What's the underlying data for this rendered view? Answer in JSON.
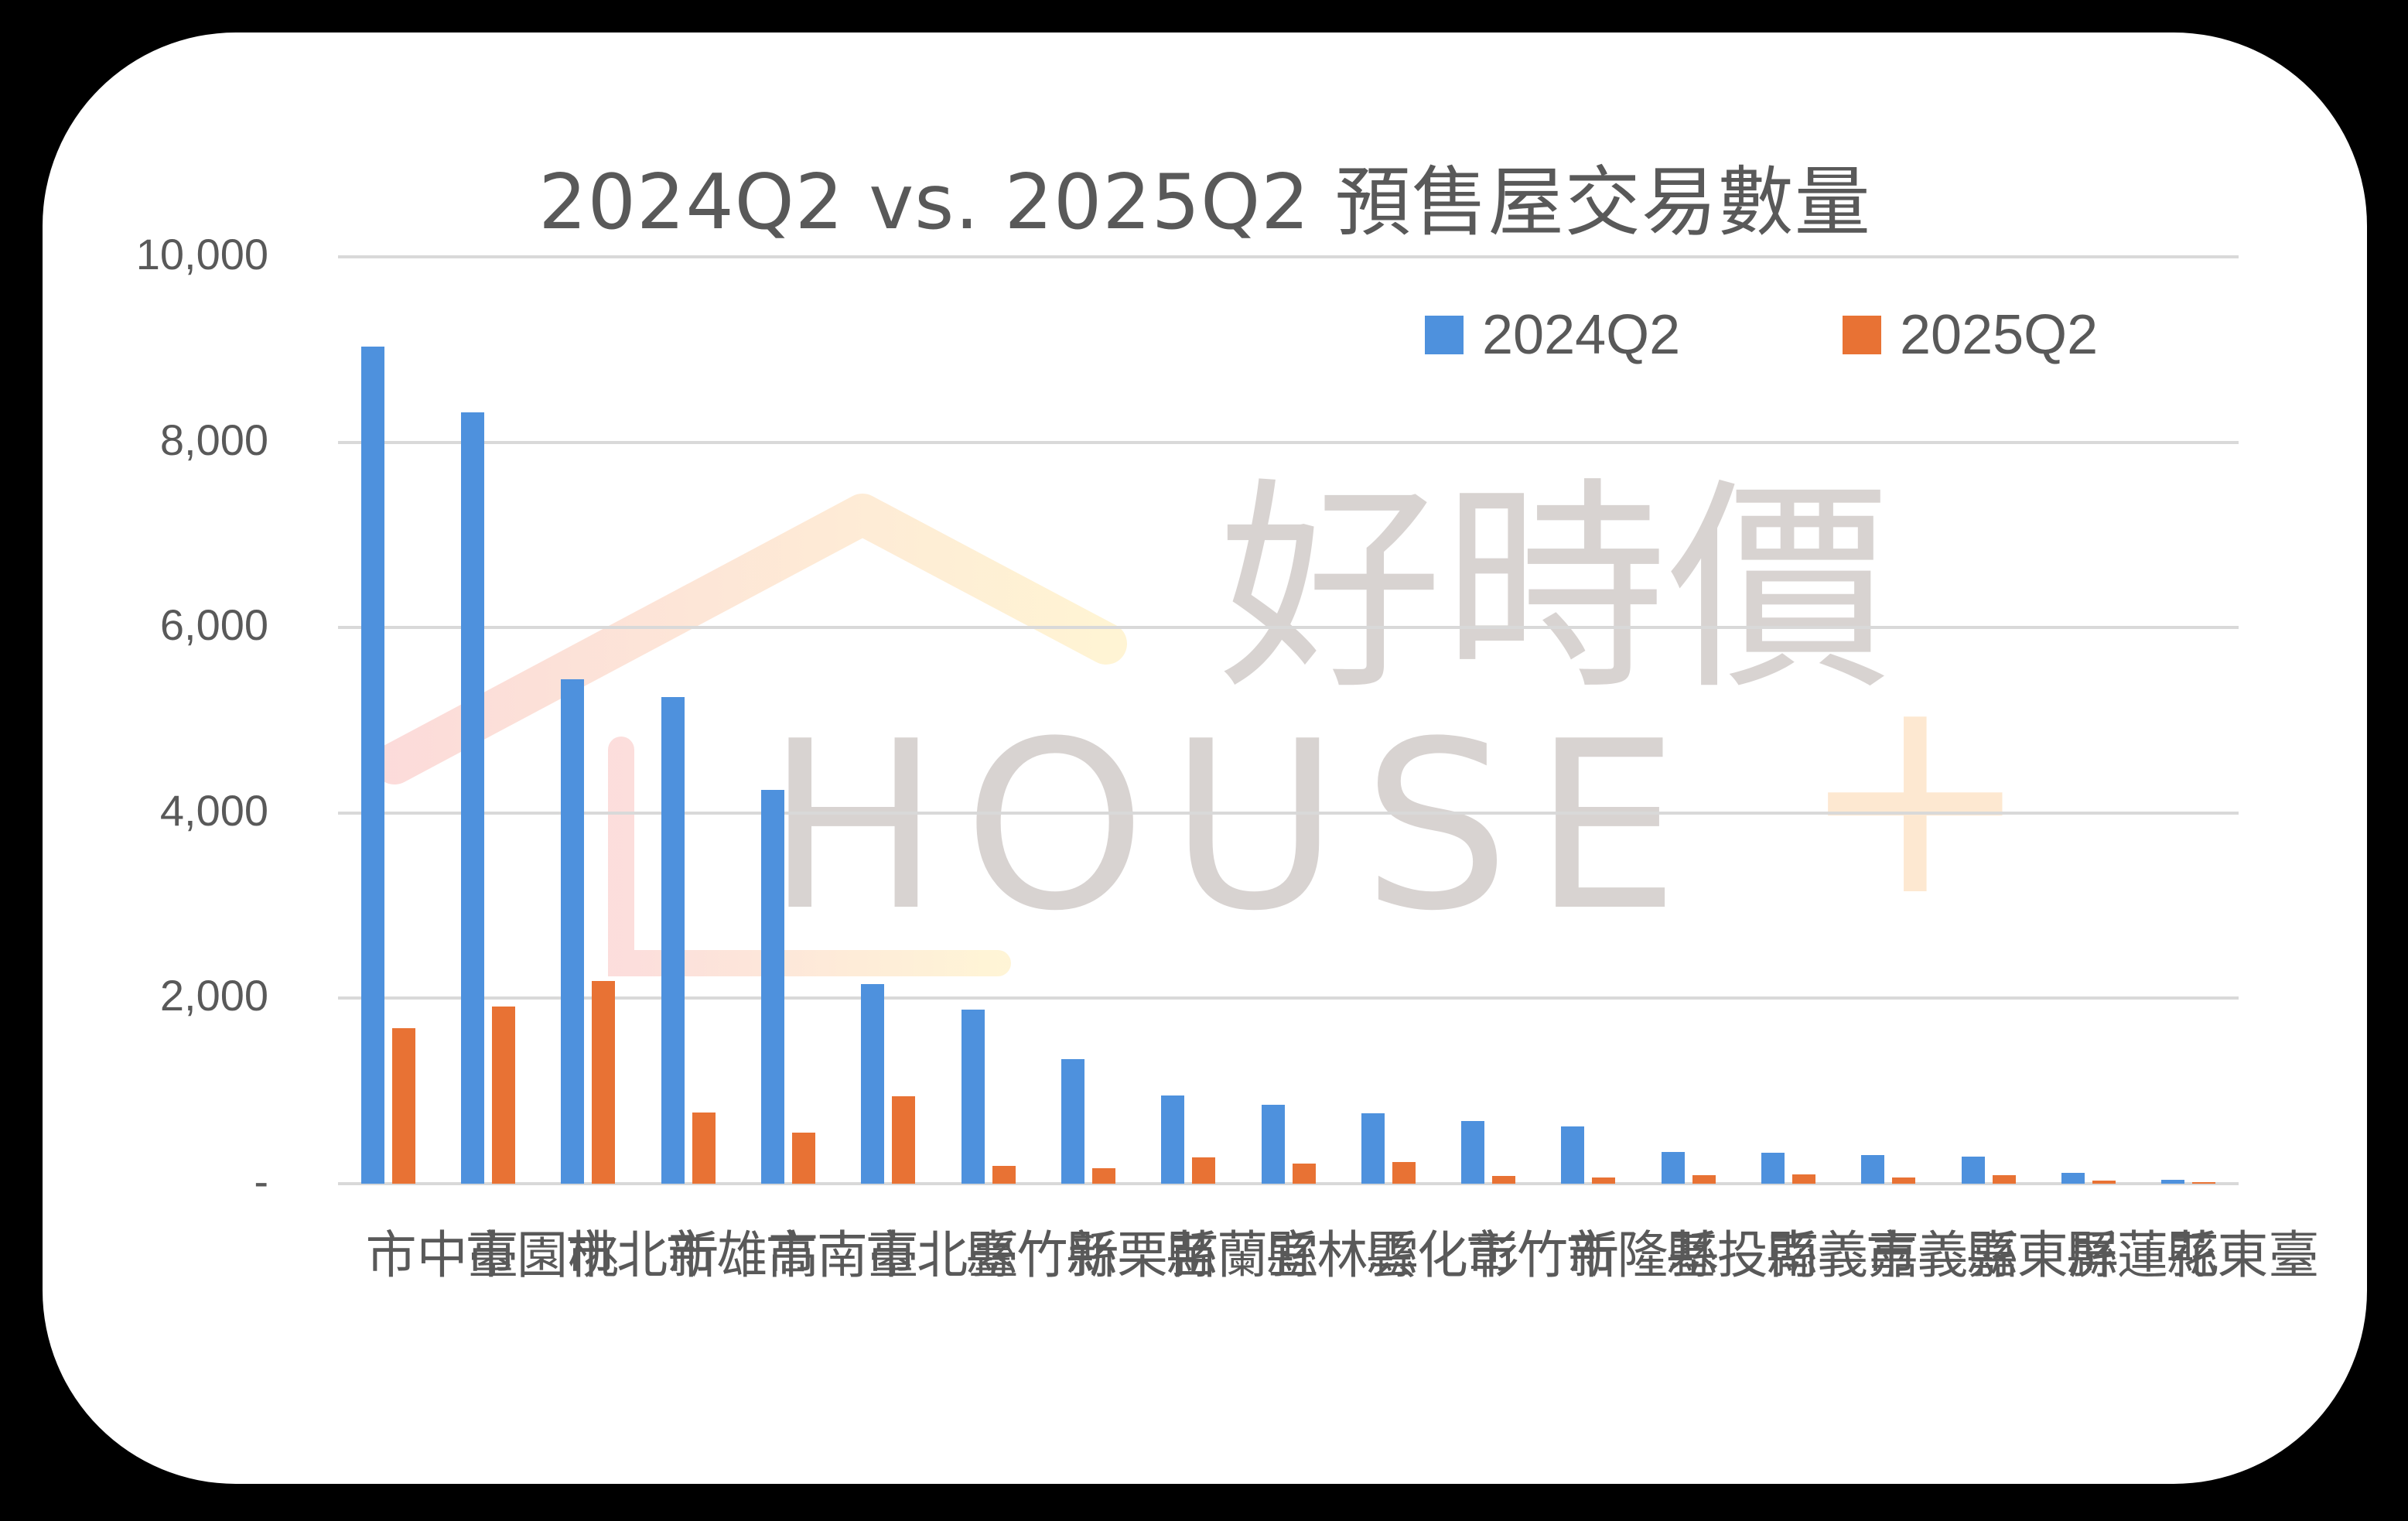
{
  "chart": {
    "title": "2024Q2 vs. 2025Q2 預售屋交易數量",
    "watermark": {
      "chinese": "好時價",
      "english": "HOUSE",
      "plus": "+"
    },
    "legend": [
      {
        "label": "2024Q2",
        "color": "#4e91dd"
      },
      {
        "label": "2025Q2",
        "color": "#e87234"
      }
    ],
    "y_ticks": [
      "10,000",
      "8,000",
      "6,000",
      "4,000",
      "2,000",
      "-"
    ]
  },
  "chart_data": {
    "type": "bar",
    "title": "2024Q2 vs. 2025Q2 預售屋交易數量",
    "xlabel": "",
    "ylabel": "",
    "ylim": [
      0,
      10000
    ],
    "y_ticks": [
      0,
      2000,
      4000,
      6000,
      8000,
      10000
    ],
    "y_tick_labels": [
      "-",
      "2,000",
      "4,000",
      "6,000",
      "8,000",
      "10,000"
    ],
    "grid": true,
    "legend_position": "top-right",
    "categories": [
      "臺中市",
      "桃園市",
      "新北市",
      "高雄市",
      "臺南市",
      "臺北市",
      "新竹縣",
      "苗栗縣",
      "宜蘭縣",
      "雲林縣",
      "彰化縣",
      "新竹市",
      "基隆市",
      "南投縣",
      "嘉義縣",
      "嘉義市",
      "屏東縣",
      "花蓮縣",
      "臺東縣"
    ],
    "series": [
      {
        "name": "2024Q2",
        "color": "#4e91dd",
        "values": [
          9030,
          8320,
          5440,
          5250,
          4250,
          2150,
          1880,
          1340,
          950,
          850,
          760,
          680,
          620,
          340,
          330,
          310,
          290,
          120,
          40
        ]
      },
      {
        "name": "2025Q2",
        "color": "#e87234",
        "values": [
          1680,
          1910,
          2190,
          770,
          550,
          940,
          190,
          170,
          280,
          220,
          230,
          80,
          70,
          90,
          100,
          70,
          90,
          30,
          15
        ]
      }
    ]
  }
}
